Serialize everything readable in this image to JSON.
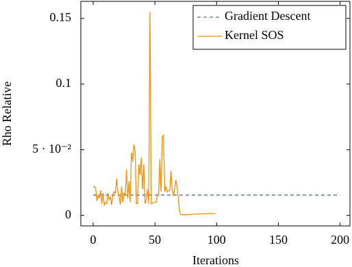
{
  "chart_data": {
    "type": "line",
    "x_label": "Iterations",
    "y_label": "Rho Relative",
    "xlim": [
      -10,
      208
    ],
    "ylim": [
      -0.008,
      0.163
    ],
    "xticks": [
      0,
      50,
      100,
      150,
      200
    ],
    "yticks": [
      0,
      {
        "value": 0.05,
        "label": "5 · 10⁻²"
      },
      0.1,
      0.15
    ],
    "legend_position": "upper right",
    "series": [
      {
        "name": "Gradient Descent",
        "color": "#5b6e8f",
        "dashed": true,
        "x": [
          0,
          200
        ],
        "values": [
          0.0155,
          0.0155
        ]
      },
      {
        "name": "Kernel SOS",
        "color": "#ff8c00",
        "dashed": false,
        "x": [
          0,
          1,
          2,
          3,
          4,
          5,
          6,
          7,
          8,
          9,
          10,
          11,
          12,
          13,
          14,
          15,
          16,
          17,
          18,
          19,
          20,
          21,
          22,
          23,
          24,
          25,
          26,
          27,
          28,
          29,
          30,
          31,
          32,
          33,
          34,
          35,
          36,
          37,
          38,
          39,
          40,
          41,
          42,
          43,
          44,
          45,
          46,
          47,
          48,
          49,
          50,
          51,
          52,
          53,
          54,
          55,
          56,
          57,
          58,
          59,
          60,
          61,
          62,
          63,
          64,
          65,
          66,
          67,
          68,
          69,
          70,
          71,
          72,
          73,
          74,
          75,
          76,
          77,
          78,
          79,
          80,
          81,
          82,
          83,
          84,
          85,
          86,
          87,
          88,
          89,
          90,
          91,
          92,
          93,
          94,
          95,
          96,
          97,
          98,
          99
        ],
        "values": [
          0.022,
          0.022,
          0.021,
          0.011,
          0.016,
          0.013,
          0.019,
          0.009,
          0.017,
          0.008,
          0.01,
          0.009,
          0.017,
          0.012,
          0.014,
          0.008,
          0.016,
          0.018,
          0.017,
          0.028,
          0.018,
          0.014,
          0.008,
          0.022,
          0.01,
          0.017,
          0.016,
          0.035,
          0.013,
          0.026,
          0.01,
          0.048,
          0.041,
          0.054,
          0.049,
          0.009,
          0.009,
          0.039,
          0.031,
          0.044,
          0.02,
          0.039,
          0.009,
          0.012,
          0.02,
          0.009,
          0.155,
          0.009,
          0.009,
          0.01,
          0.01,
          0.01,
          0.016,
          0.015,
          0.043,
          0.018,
          0.06,
          0.061,
          0.018,
          0.022,
          0.018,
          0.019,
          0.019,
          0.034,
          0.02,
          0.015,
          0.02,
          0.027,
          0.021,
          0.013,
          0.003,
          0.0008,
          0.0005,
          0.0005,
          0.0005,
          0.0005,
          0.0005,
          0.0006,
          0.0007,
          0.0008,
          0.0009,
          0.001,
          0.001,
          0.0011,
          0.0011,
          0.0011,
          0.0012,
          0.0012,
          0.0012,
          0.0012,
          0.0012,
          0.0013,
          0.0013,
          0.0013,
          0.0013,
          0.0013,
          0.0013,
          0.0013,
          0.0013,
          0.0013
        ]
      }
    ]
  }
}
